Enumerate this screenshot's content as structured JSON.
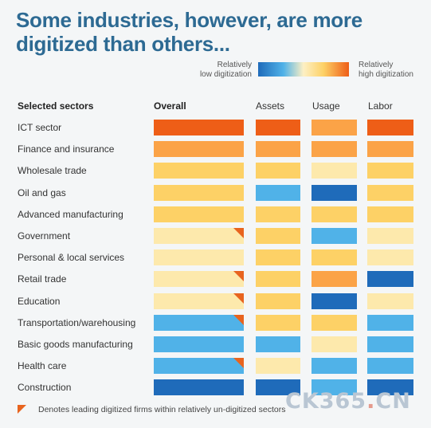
{
  "title": "Some industries, however, are more digitized than others...",
  "legend": {
    "low_label_1": "Relatively",
    "low_label_2": "low digitization",
    "high_label_1": "Relatively",
    "high_label_2": "high digitization"
  },
  "colors": {
    "level_5": "#ee5e17",
    "level_4": "#fba347",
    "level_3": "#fdd166",
    "level_2": "#fde9ac",
    "level_1": "#50b2e8",
    "level_0": "#1f6bba",
    "flag": "#e8641f"
  },
  "footnote": "Denotes leading digitized firms within relatively un-digitized sectors",
  "watermark": {
    "main": "CK365",
    "dot": ".",
    "suffix": "CN"
  },
  "chart_data": {
    "type": "heatmap",
    "scale": "0 = relatively low digitization, 5 = relatively high digitization",
    "row_header": "Selected sectors",
    "columns": [
      "Overall",
      "Assets",
      "Usage",
      "Labor"
    ],
    "rows": [
      {
        "label": "ICT sector",
        "values": [
          5,
          5,
          4,
          5
        ],
        "flag": false
      },
      {
        "label": "Finance and insurance",
        "values": [
          4,
          4,
          4,
          4
        ],
        "flag": false
      },
      {
        "label": "Wholesale trade",
        "values": [
          3,
          3,
          2,
          3
        ],
        "flag": false
      },
      {
        "label": "Oil and gas",
        "values": [
          3,
          1,
          0,
          3
        ],
        "flag": false
      },
      {
        "label": "Advanced manufacturing",
        "values": [
          3,
          3,
          3,
          3
        ],
        "flag": false
      },
      {
        "label": "Government",
        "values": [
          2,
          3,
          1,
          2
        ],
        "flag": true
      },
      {
        "label": "Personal & local services",
        "values": [
          2,
          3,
          3,
          2
        ],
        "flag": false
      },
      {
        "label": "Retail trade",
        "values": [
          2,
          3,
          4,
          0
        ],
        "flag": true
      },
      {
        "label": "Education",
        "values": [
          2,
          3,
          0,
          2
        ],
        "flag": true
      },
      {
        "label": "Transportation/warehousing",
        "values": [
          1,
          3,
          3,
          1
        ],
        "flag": true
      },
      {
        "label": "Basic goods manufacturing",
        "values": [
          1,
          1,
          2,
          1
        ],
        "flag": false
      },
      {
        "label": "Health care",
        "values": [
          1,
          2,
          1,
          1
        ],
        "flag": true
      },
      {
        "label": "Construction",
        "values": [
          0,
          0,
          1,
          0
        ],
        "flag": false
      }
    ]
  }
}
